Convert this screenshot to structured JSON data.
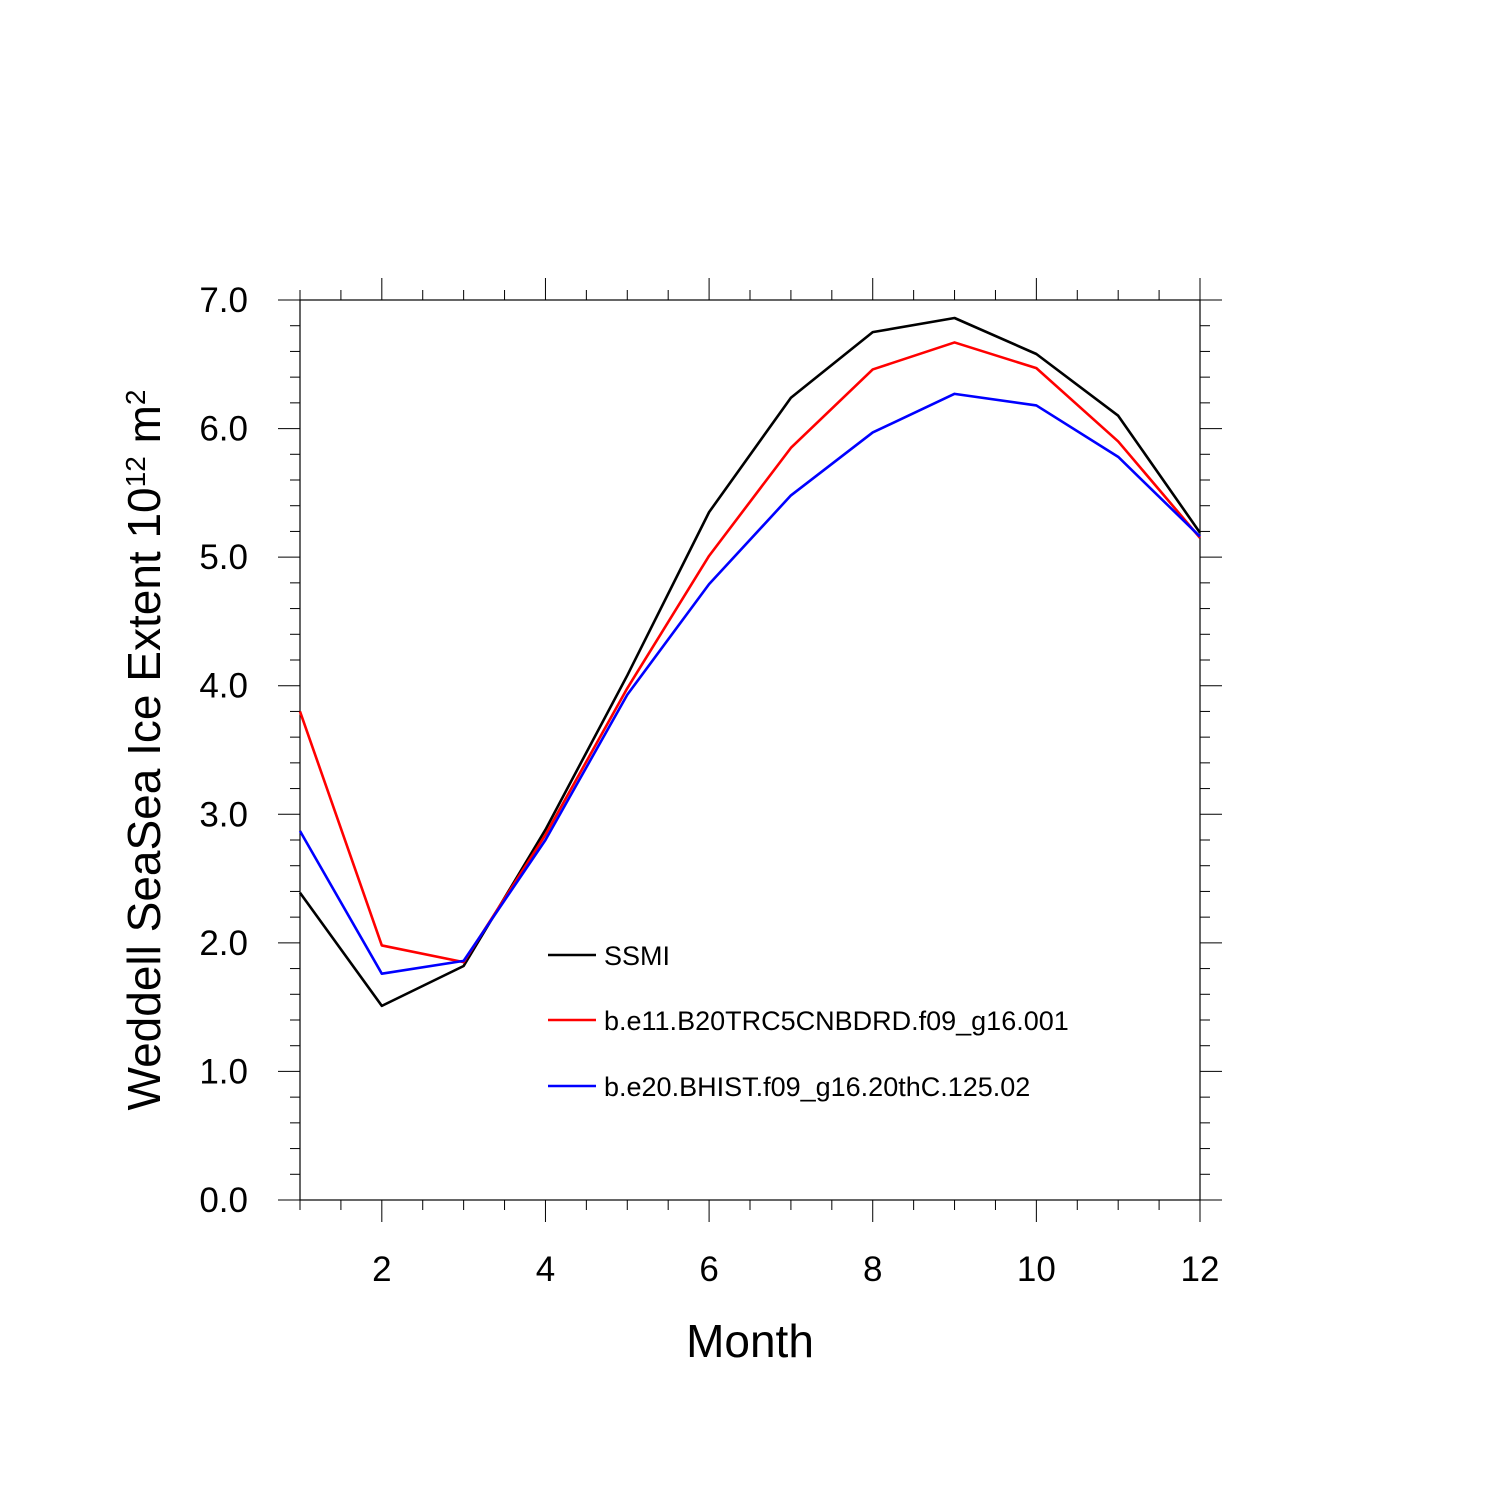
{
  "chart_data": {
    "type": "line",
    "xlabel": "Month",
    "ylabel": {
      "prefix": "Weddell SeaSea Ice Extent 10",
      "exponent": "12",
      "unit": " m",
      "unit_exponent": "2"
    },
    "xlim": [
      1,
      12
    ],
    "ylim": [
      0,
      7
    ],
    "x_ticks": [
      2,
      4,
      6,
      8,
      10,
      12
    ],
    "x_tick_labels": [
      "2",
      "4",
      "6",
      "8",
      "10",
      "12"
    ],
    "y_ticks": [
      0,
      1,
      2,
      3,
      4,
      5,
      6,
      7
    ],
    "y_tick_labels": [
      "0.0",
      "1.0",
      "2.0",
      "3.0",
      "4.0",
      "5.0",
      "6.0",
      "7.0"
    ],
    "x": [
      1,
      2,
      3,
      4,
      5,
      6,
      7,
      8,
      9,
      10,
      11,
      12
    ],
    "series": [
      {
        "name": "SSMI",
        "color": "#000000",
        "values": [
          2.39,
          1.51,
          1.82,
          2.88,
          4.08,
          5.35,
          6.24,
          6.75,
          6.86,
          6.58,
          6.1,
          5.19
        ]
      },
      {
        "name": "b.e11.B20TRC5CNBDRD.f09_g16.001",
        "color": "#ff0000",
        "values": [
          3.8,
          1.98,
          1.85,
          2.84,
          3.98,
          5.01,
          5.85,
          6.46,
          6.67,
          6.47,
          5.9,
          5.15
        ]
      },
      {
        "name": "b.e20.BHIST.f09_g16.20thC.125.02",
        "color": "#0000ff",
        "values": [
          2.87,
          1.76,
          1.86,
          2.8,
          3.93,
          4.79,
          5.48,
          5.97,
          6.27,
          6.18,
          5.78,
          5.16
        ]
      }
    ],
    "legend_position": "lower-center",
    "grid": false
  }
}
